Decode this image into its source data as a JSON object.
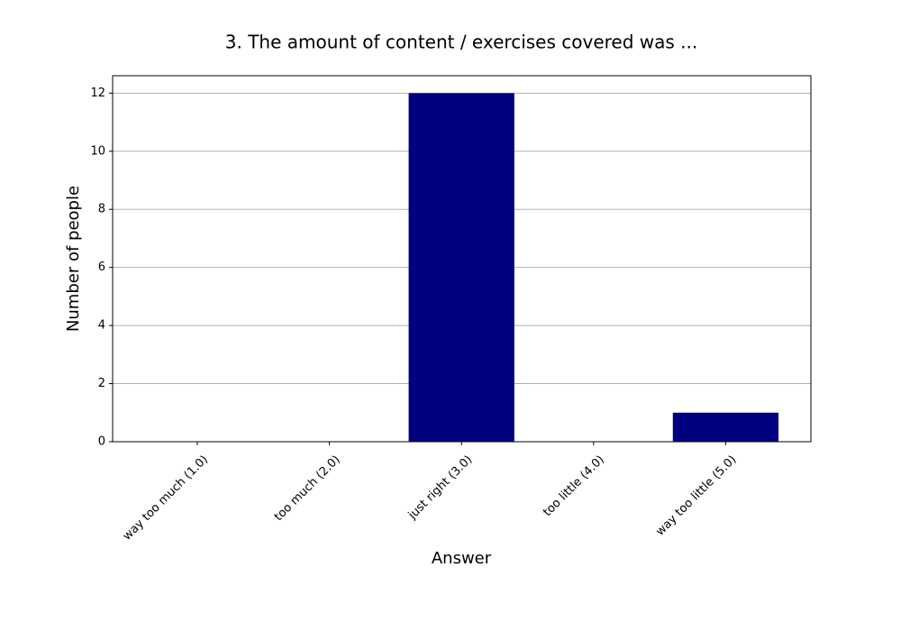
{
  "chart_data": {
    "type": "bar",
    "title": "3. The amount of content / exercises covered was ...",
    "x_label": "Answer",
    "y_label": "Number of people",
    "categories": [
      "way too much (1.0)",
      "too much (2.0)",
      "just right (3.0)",
      "too little (4.0)",
      "way too little (5.0)"
    ],
    "values": [
      0,
      0,
      12,
      0,
      1
    ],
    "color": "#000080",
    "ylim": [
      0,
      12.6
    ],
    "yticks": [
      0,
      2,
      4,
      6,
      8,
      10,
      12
    ],
    "grid": true
  }
}
